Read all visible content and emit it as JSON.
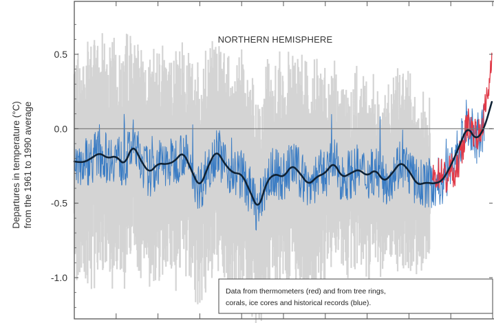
{
  "chart_data": {
    "type": "line",
    "title": "NORTHERN HEMISPHERE",
    "ylabel_line1": "Departures in temperature (°C)",
    "ylabel_line2": "from the 1961 to 1990 average",
    "yticks": [
      "0.5",
      "0.0",
      "-0.5",
      "-1.0"
    ],
    "ytick_values": [
      0.5,
      0.0,
      -0.5,
      -1.0
    ],
    "ylim": [
      -1.3,
      0.75
    ],
    "xlim": [
      1000,
      2000
    ],
    "grid": false,
    "zero_line": true,
    "annotation_lines": [
      "Data from thermometers (red) and from tree rings,",
      "corals, ice cores and historical records (blue)."
    ],
    "colors": {
      "proxy": "#3a7cc4",
      "smoothed": "#0f2235",
      "thermometer": "#e03a48",
      "uncertainty": "#d4d4d4",
      "frame": "#555555"
    },
    "smoothed_series": {
      "x": [
        1000,
        1020,
        1040,
        1060,
        1080,
        1100,
        1120,
        1140,
        1160,
        1180,
        1200,
        1220,
        1240,
        1260,
        1280,
        1300,
        1320,
        1340,
        1360,
        1380,
        1400,
        1420,
        1440,
        1460,
        1480,
        1500,
        1520,
        1540,
        1560,
        1580,
        1600,
        1620,
        1640,
        1660,
        1680,
        1700,
        1720,
        1740,
        1760,
        1780,
        1800,
        1820,
        1840,
        1860,
        1880,
        1900,
        1920,
        1940,
        1960,
        1980,
        1998
      ],
      "y": [
        -0.22,
        -0.23,
        -0.2,
        -0.16,
        -0.2,
        -0.18,
        -0.25,
        -0.1,
        -0.22,
        -0.3,
        -0.23,
        -0.24,
        -0.22,
        -0.15,
        -0.28,
        -0.4,
        -0.25,
        -0.14,
        -0.24,
        -0.3,
        -0.3,
        -0.42,
        -0.55,
        -0.35,
        -0.3,
        -0.33,
        -0.24,
        -0.3,
        -0.38,
        -0.32,
        -0.3,
        -0.22,
        -0.33,
        -0.3,
        -0.27,
        -0.32,
        -0.27,
        -0.36,
        -0.3,
        -0.22,
        -0.28,
        -0.38,
        -0.36,
        -0.37,
        -0.35,
        -0.25,
        -0.12,
        0.02,
        -0.08,
        0.0,
        0.18
      ]
    },
    "thermometer_series": {
      "x": [
        1856,
        1870,
        1880,
        1890,
        1900,
        1910,
        1920,
        1930,
        1940,
        1950,
        1960,
        1970,
        1980,
        1990,
        1998
      ],
      "y": [
        -0.35,
        -0.3,
        -0.28,
        -0.35,
        -0.25,
        -0.35,
        -0.2,
        -0.1,
        0.05,
        0.0,
        -0.02,
        -0.05,
        0.1,
        0.25,
        0.5
      ]
    }
  }
}
